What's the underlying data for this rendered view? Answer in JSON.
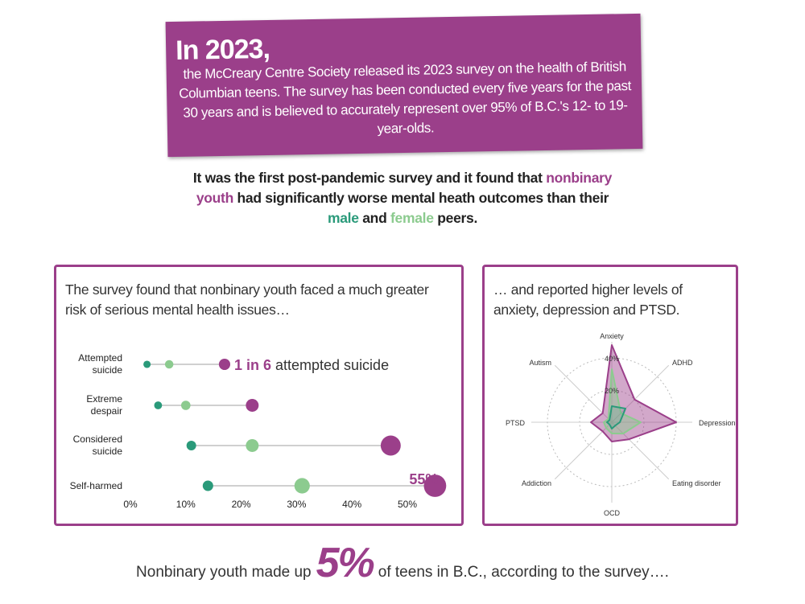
{
  "header": {
    "title": "In 2023,",
    "body": "the McCreary Centre Society released its 2023 survey on the health of British Columbian teens. The survey has been conducted every five years for the past 30 years and is believed to accurately represent over 95% of B.C.'s 12- to 19-year-olds."
  },
  "intro": {
    "parts": [
      "It was the first post-pandemic survey and it found that",
      "had significantly worse mental heath outcomes than their",
      "and",
      "peers."
    ]
  },
  "chart_data": [
    {
      "type": "dot",
      "subtitle": "The survey found that nonbinary youth faced a much greater risk of serious mental health issues…",
      "categories": [
        "Attempted suicide",
        "Extreme despair",
        "Considered suicide",
        "Self-harmed"
      ],
      "series": [
        {
          "name": "nonbinary youth",
          "color": "#9b3f8a",
          "values": [
            17,
            22,
            47,
            55
          ],
          "value_labels": [
            "1 in 6",
            null,
            null,
            "55%"
          ]
        },
        {
          "name": "male",
          "color": "#2a9a7a",
          "values": [
            3,
            5,
            11,
            14
          ]
        },
        {
          "name": "female",
          "color": "#8ccb8f",
          "values": [
            7,
            10,
            22,
            31
          ]
        }
      ],
      "annotations": [
        {
          "text": "attempted suicide"
        }
      ],
      "xlim": [
        0,
        57
      ],
      "xticks": [
        {
          "value": 0,
          "label": "0%"
        },
        {
          "value": 10,
          "label": "10%"
        },
        {
          "value": 20,
          "label": "20%"
        },
        {
          "value": 30,
          "label": "30%"
        },
        {
          "value": 40,
          "label": "40%"
        },
        {
          "value": 50,
          "label": "50%"
        }
      ]
    },
    {
      "type": "radar",
      "subtitle": "… and reported higher levels of anxiety, depression and PTSD.",
      "categories": [
        "Anxiety",
        "ADHD",
        "Depression",
        "Eating disorder",
        "OCD",
        "Addiction",
        "PTSD",
        "Autism"
      ],
      "series": [
        {
          "color": "#9b3f8a",
          "values": [
            48,
            20,
            40,
            15,
            12,
            8,
            13,
            8
          ]
        },
        {
          "color": "#2a9a7a",
          "values": [
            10,
            12,
            5,
            3,
            4,
            2,
            3,
            2
          ]
        },
        {
          "color": "#8ccb8f",
          "values": [
            33,
            8,
            18,
            10,
            7,
            5,
            5,
            3
          ]
        }
      ],
      "rlim": [
        0,
        40
      ],
      "rticks": [
        {
          "value": 20,
          "label": "20%"
        },
        {
          "value": 40,
          "label": "40%"
        }
      ]
    }
  ],
  "footer": {
    "before": "Nonbinary youth made up",
    "highlight": "5%",
    "after": "of teens in B.C., according to the survey…."
  }
}
